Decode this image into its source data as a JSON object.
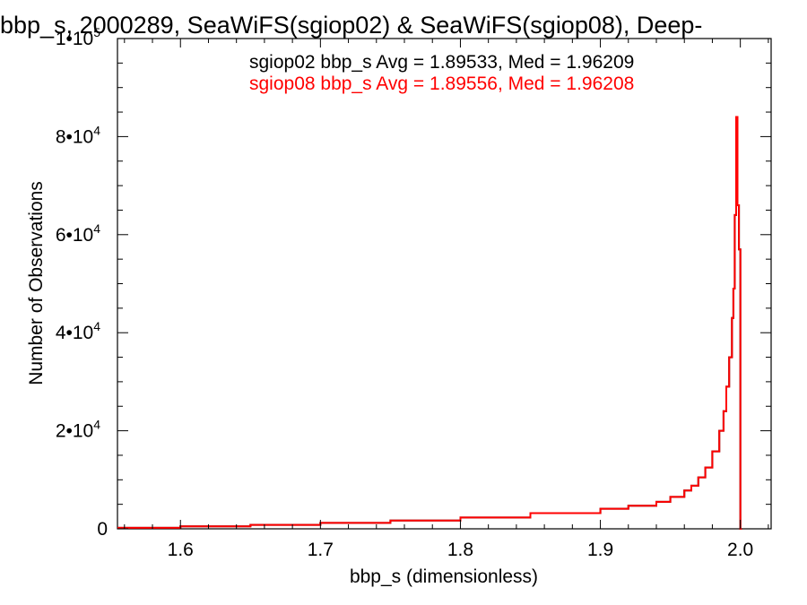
{
  "chart_data": {
    "type": "line",
    "step": true,
    "title": "bbp_s, 2000289, SeaWiFS(sgiop02) & SeaWiFS(sgiop08), Deep-",
    "xlabel": "bbp_s (dimensionless)",
    "ylabel": "Number of Observations",
    "xlim": [
      1.555,
      2.022
    ],
    "ylim": [
      0,
      100000
    ],
    "x_ticks": [
      {
        "value": 1.6,
        "label": "1.6"
      },
      {
        "value": 1.7,
        "label": "1.7"
      },
      {
        "value": 1.8,
        "label": "1.8"
      },
      {
        "value": 1.9,
        "label": "1.9"
      },
      {
        "value": 2.0,
        "label": "2.0"
      }
    ],
    "y_ticks": [
      {
        "value": 0,
        "mant": "0",
        "exp": ""
      },
      {
        "value": 20000,
        "mant": "2•10",
        "exp": "4"
      },
      {
        "value": 40000,
        "mant": "4•10",
        "exp": "4"
      },
      {
        "value": 60000,
        "mant": "6•10",
        "exp": "4"
      },
      {
        "value": 80000,
        "mant": "8•10",
        "exp": "4"
      },
      {
        "value": 100000,
        "mant": "1•10",
        "exp": "5"
      }
    ],
    "annotations": [
      {
        "text": "sgiop02 bbp_s Avg = 1.89533, Med = 1.96209",
        "color": "#000000"
      },
      {
        "text": "sgiop08 bbp_s Avg = 1.89556, Med = 1.96208",
        "color": "#ff0000"
      }
    ],
    "series": [
      {
        "name": "sgiop02",
        "color": "#000000",
        "x": [
          1.555,
          1.6,
          1.65,
          1.7,
          1.75,
          1.8,
          1.85,
          1.9,
          1.92,
          1.94,
          1.95,
          1.96,
          1.965,
          1.97,
          1.975,
          1.98,
          1.985,
          1.988,
          1.99,
          1.992,
          1.994,
          1.995,
          1.996,
          1.997,
          1.998,
          1.999,
          2.0,
          2.001
        ],
        "y": [
          200,
          500,
          800,
          1200,
          1700,
          2300,
          3200,
          4100,
          4700,
          5500,
          6500,
          7800,
          8800,
          10500,
          12500,
          15800,
          20000,
          24000,
          29000,
          35000,
          43000,
          49000,
          64000,
          84000,
          66000,
          57000,
          0,
          0
        ]
      },
      {
        "name": "sgiop08",
        "color": "#ff0000",
        "x": [
          1.555,
          1.6,
          1.65,
          1.7,
          1.75,
          1.8,
          1.85,
          1.9,
          1.92,
          1.94,
          1.95,
          1.96,
          1.965,
          1.97,
          1.975,
          1.98,
          1.985,
          1.988,
          1.99,
          1.992,
          1.994,
          1.995,
          1.996,
          1.997,
          1.998,
          1.999,
          2.0,
          2.001
        ],
        "y": [
          200,
          500,
          800,
          1200,
          1700,
          2300,
          3200,
          4100,
          4700,
          5500,
          6500,
          7800,
          8800,
          10500,
          12500,
          15800,
          20000,
          24000,
          29000,
          35000,
          43000,
          49000,
          64000,
          84000,
          66000,
          57000,
          0,
          0
        ]
      }
    ]
  }
}
